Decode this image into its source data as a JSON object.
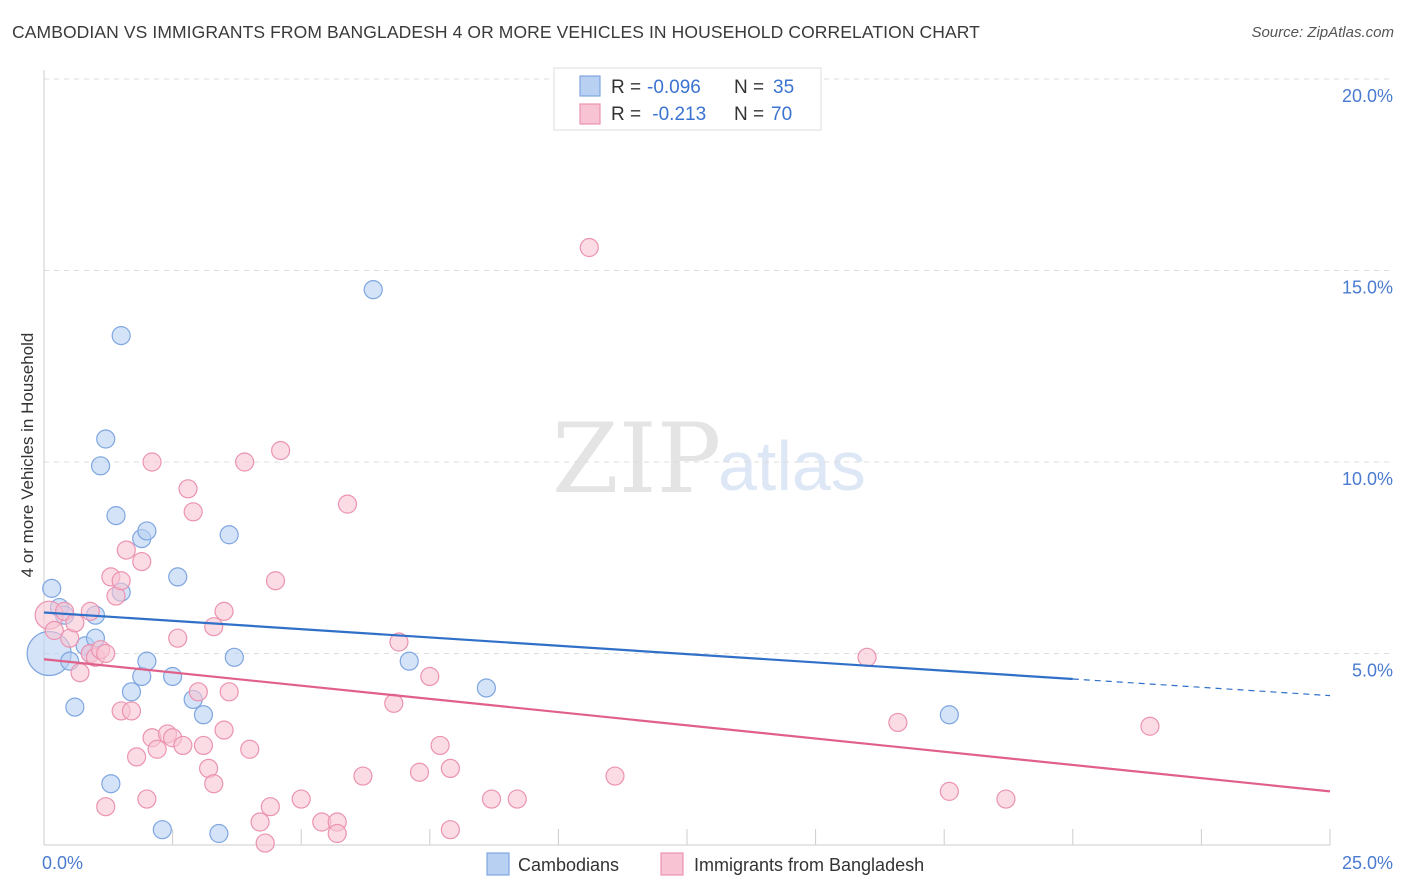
{
  "title": "CAMBODIAN VS IMMIGRANTS FROM BANGLADESH 4 OR MORE VEHICLES IN HOUSEHOLD CORRELATION CHART",
  "source": "Source: ZipAtlas.com",
  "watermark": {
    "zip": "ZIP",
    "atlas": "atlas"
  },
  "colors": {
    "blue_fill": "#b8d0f2",
    "blue_stroke": "#7ea6e0",
    "blue_line": "#3070c8",
    "pink_fill": "#f8c4d4",
    "pink_stroke": "#eb93b0",
    "pink_line": "#e0608a",
    "grid": "#dddddd",
    "axis_text": "#4a7bd0"
  },
  "legend_top": {
    "rows": [
      {
        "r_label": "R =",
        "r_value": "-0.096",
        "n_label": "N =",
        "n_value": "35"
      },
      {
        "r_label": "R =",
        "r_value": " -0.213",
        "n_label": "N =",
        "n_value": "70"
      }
    ]
  },
  "legend_bottom": {
    "series1": "Cambodians",
    "series2": "Immigrants from Bangladesh"
  },
  "chart_data": {
    "type": "scatter",
    "title": "CAMBODIAN VS IMMIGRANTS FROM BANGLADESH 4 OR MORE VEHICLES IN HOUSEHOLD CORRELATION CHART",
    "xlabel": "",
    "ylabel": "4 or more Vehicles in Household",
    "xlim": [
      0,
      25
    ],
    "ylim": [
      0,
      20
    ],
    "x_tick_labels": {
      "min": "0.0%",
      "max": "25.0%"
    },
    "y_ticks": [
      {
        "value": 5,
        "label": "5.0%"
      },
      {
        "value": 10,
        "label": "10.0%"
      },
      {
        "value": 15,
        "label": "15.0%"
      },
      {
        "value": 20,
        "label": "20.0%"
      }
    ],
    "series": [
      {
        "name": "Cambodians",
        "color": "blue",
        "R": -0.096,
        "N": 35,
        "trend": {
          "x_start": 0.0,
          "y_start": 6.07,
          "x_solid_end": 20.0,
          "x_end": 25.0,
          "y_end": 3.9
        },
        "points": [
          [
            0.1,
            5.0,
            22
          ],
          [
            0.15,
            6.7,
            9
          ],
          [
            0.3,
            6.2,
            9
          ],
          [
            0.4,
            6.0,
            9
          ],
          [
            0.5,
            4.8,
            9
          ],
          [
            0.6,
            3.6,
            9
          ],
          [
            0.8,
            5.2,
            9
          ],
          [
            0.9,
            5.0,
            9
          ],
          [
            1.0,
            5.4,
            9
          ],
          [
            1.0,
            6.0,
            9
          ],
          [
            1.1,
            9.9,
            9
          ],
          [
            1.2,
            10.6,
            9
          ],
          [
            1.3,
            1.6,
            9
          ],
          [
            1.4,
            8.6,
            9
          ],
          [
            1.5,
            6.6,
            9
          ],
          [
            1.5,
            13.3,
            9
          ],
          [
            1.7,
            4.0,
            9
          ],
          [
            1.9,
            8.0,
            9
          ],
          [
            1.9,
            4.4,
            9
          ],
          [
            2.0,
            8.2,
            9
          ],
          [
            2.0,
            4.8,
            9
          ],
          [
            2.3,
            0.4,
            9
          ],
          [
            2.5,
            4.4,
            9
          ],
          [
            2.6,
            7.0,
            9
          ],
          [
            2.9,
            3.8,
            9
          ],
          [
            3.1,
            3.4,
            9
          ],
          [
            3.4,
            0.3,
            9
          ],
          [
            3.6,
            8.1,
            9
          ],
          [
            3.7,
            4.9,
            9
          ],
          [
            6.4,
            14.5,
            9
          ],
          [
            7.1,
            4.8,
            9
          ],
          [
            8.6,
            4.1,
            9
          ],
          [
            17.6,
            3.4,
            9
          ]
        ]
      },
      {
        "name": "Immigrants from Bangladesh",
        "color": "pink",
        "R": -0.213,
        "N": 70,
        "trend": {
          "x_start": 0.0,
          "y_start": 4.85,
          "x_end": 25.0,
          "y_end": 1.4
        },
        "points": [
          [
            0.1,
            6.0,
            14
          ],
          [
            0.2,
            5.6,
            9
          ],
          [
            0.4,
            6.1,
            9
          ],
          [
            0.5,
            5.4,
            9
          ],
          [
            0.6,
            5.8,
            9
          ],
          [
            0.7,
            4.5,
            9
          ],
          [
            0.9,
            6.1,
            9
          ],
          [
            0.9,
            5.0,
            9
          ],
          [
            1.0,
            4.9,
            9
          ],
          [
            1.1,
            5.1,
            9
          ],
          [
            1.2,
            5.0,
            9
          ],
          [
            1.2,
            1.0,
            9
          ],
          [
            1.3,
            7.0,
            9
          ],
          [
            1.4,
            6.5,
            9
          ],
          [
            1.5,
            6.9,
            9
          ],
          [
            1.5,
            3.5,
            9
          ],
          [
            1.6,
            7.7,
            9
          ],
          [
            1.7,
            3.5,
            9
          ],
          [
            1.8,
            2.3,
            9
          ],
          [
            1.9,
            7.4,
            9
          ],
          [
            2.0,
            1.2,
            9
          ],
          [
            2.1,
            10.0,
            9
          ],
          [
            2.1,
            2.8,
            9
          ],
          [
            2.2,
            2.5,
            9
          ],
          [
            2.4,
            2.9,
            9
          ],
          [
            2.5,
            2.8,
            9
          ],
          [
            2.6,
            5.4,
            9
          ],
          [
            2.7,
            2.6,
            9
          ],
          [
            2.8,
            9.3,
            9
          ],
          [
            2.9,
            8.7,
            9
          ],
          [
            3.0,
            4.0,
            9
          ],
          [
            3.1,
            2.6,
            9
          ],
          [
            3.2,
            2.0,
            9
          ],
          [
            3.3,
            1.6,
            9
          ],
          [
            3.3,
            5.7,
            9
          ],
          [
            3.5,
            6.1,
            9
          ],
          [
            3.5,
            3.0,
            9
          ],
          [
            3.6,
            4.0,
            9
          ],
          [
            3.9,
            10.0,
            9
          ],
          [
            4.0,
            2.5,
            9
          ],
          [
            4.2,
            0.6,
            9
          ],
          [
            4.3,
            0.05,
            9
          ],
          [
            4.4,
            1.0,
            9
          ],
          [
            4.5,
            6.9,
            9
          ],
          [
            4.6,
            10.3,
            9
          ],
          [
            5.0,
            1.2,
            9
          ],
          [
            5.4,
            0.6,
            9
          ],
          [
            5.7,
            0.6,
            9
          ],
          [
            5.7,
            0.3,
            9
          ],
          [
            5.9,
            8.9,
            9
          ],
          [
            6.2,
            1.8,
            9
          ],
          [
            6.8,
            3.7,
            9
          ],
          [
            6.9,
            5.3,
            9
          ],
          [
            7.3,
            1.9,
            9
          ],
          [
            7.5,
            4.4,
            9
          ],
          [
            7.7,
            2.6,
            9
          ],
          [
            7.9,
            2.0,
            9
          ],
          [
            7.9,
            0.4,
            9
          ],
          [
            8.7,
            1.2,
            9
          ],
          [
            9.2,
            1.2,
            9
          ],
          [
            10.6,
            15.6,
            9
          ],
          [
            11.1,
            1.8,
            9
          ],
          [
            16.0,
            4.9,
            9
          ],
          [
            16.6,
            3.2,
            9
          ],
          [
            17.6,
            1.4,
            9
          ],
          [
            18.7,
            1.2,
            9
          ],
          [
            21.5,
            3.1,
            9
          ]
        ]
      }
    ]
  }
}
